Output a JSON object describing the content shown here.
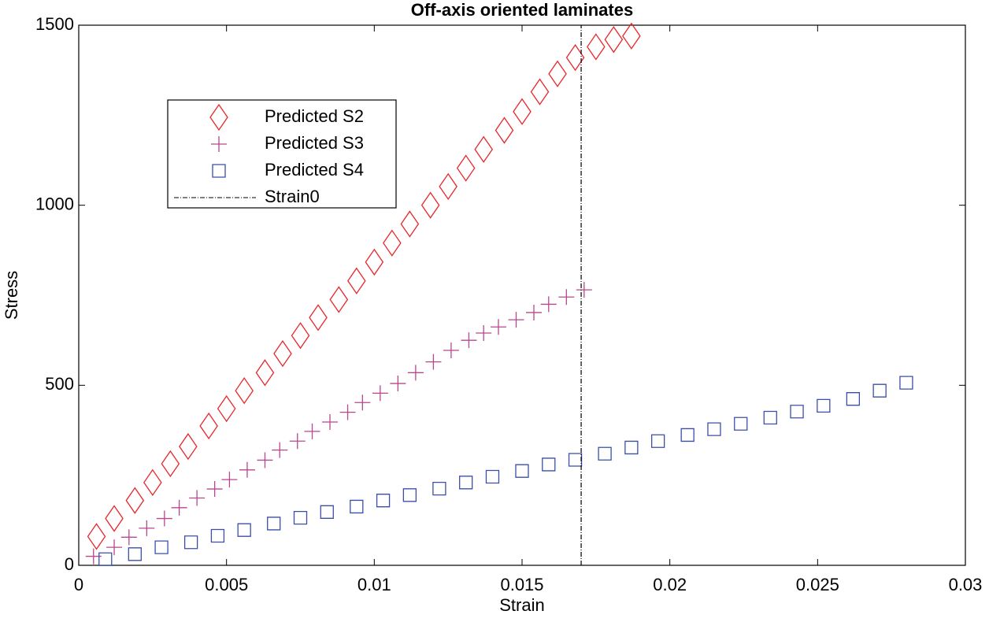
{
  "chart_data": {
    "type": "scatter",
    "title": "Off-axis oriented laminates",
    "x_label": "Strain",
    "y_label": "Stress",
    "xlim": [
      0,
      0.03
    ],
    "ylim": [
      0,
      1500
    ],
    "xticks": [
      0,
      0.005,
      0.01,
      0.015,
      0.02,
      0.025,
      0.03
    ],
    "yticks": [
      0,
      500,
      1000,
      1500
    ],
    "grid": false,
    "legend": "upper left",
    "series": [
      {
        "name": "Predicted S2",
        "color": "#e8262a",
        "marker": "diamond",
        "x": [
          0.0006,
          0.0012,
          0.0019,
          0.0025,
          0.0031,
          0.0037,
          0.0044,
          0.005,
          0.0056,
          0.0063,
          0.0069,
          0.0075,
          0.0081,
          0.0088,
          0.0094,
          0.01,
          0.0106,
          0.0112,
          0.0119,
          0.0125,
          0.0131,
          0.0137,
          0.0144,
          0.015,
          0.0156,
          0.0162,
          0.0168,
          0.0175,
          0.0181,
          0.0187
        ],
        "values": [
          80,
          130,
          180,
          230,
          282,
          330,
          387,
          435,
          485,
          535,
          588,
          638,
          688,
          738,
          790,
          842,
          895,
          948,
          1000,
          1052,
          1103,
          1155,
          1208,
          1260,
          1315,
          1365,
          1410,
          1440,
          1460,
          1470
        ]
      },
      {
        "name": "Predicted S3",
        "color": "#b8478f",
        "marker": "plus",
        "x": [
          0.0005,
          0.0012,
          0.0017,
          0.0023,
          0.0029,
          0.0034,
          0.004,
          0.0046,
          0.0051,
          0.0057,
          0.0063,
          0.0068,
          0.0074,
          0.0079,
          0.0085,
          0.0091,
          0.0096,
          0.0102,
          0.0108,
          0.0114,
          0.012,
          0.0126,
          0.0132,
          0.0137,
          0.0142,
          0.0148,
          0.0154,
          0.0159,
          0.0165,
          0.0171
        ],
        "values": [
          25,
          50,
          78,
          103,
          130,
          160,
          187,
          212,
          238,
          265,
          292,
          320,
          345,
          372,
          398,
          425,
          452,
          478,
          505,
          535,
          565,
          597,
          625,
          645,
          662,
          682,
          702,
          725,
          745,
          765
        ]
      },
      {
        "name": "Predicted S4",
        "color": "#3b4fa8",
        "marker": "square",
        "x": [
          0.0009,
          0.0019,
          0.0028,
          0.0038,
          0.0047,
          0.0056,
          0.0066,
          0.0075,
          0.0084,
          0.0094,
          0.0103,
          0.0112,
          0.0122,
          0.0131,
          0.014,
          0.015,
          0.0159,
          0.0168,
          0.0178,
          0.0187,
          0.0196,
          0.0206,
          0.0215,
          0.0224,
          0.0234,
          0.0243,
          0.0252,
          0.0262,
          0.0271,
          0.028
        ],
        "values": [
          17,
          31,
          50,
          64,
          82,
          98,
          116,
          132,
          148,
          163,
          180,
          195,
          213,
          230,
          246,
          262,
          280,
          293,
          310,
          327,
          345,
          362,
          378,
          393,
          410,
          427,
          443,
          462,
          485,
          507
        ]
      },
      {
        "name": "Strain0",
        "color": "#000000",
        "marker": "none",
        "line": "dashdot",
        "x": [
          0.017,
          0.017
        ],
        "values": [
          0,
          1500
        ]
      }
    ]
  }
}
